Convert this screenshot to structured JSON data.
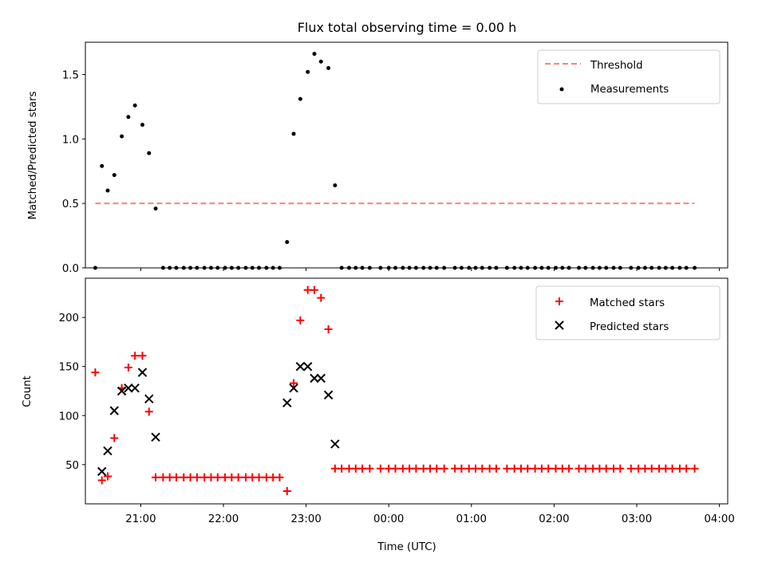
{
  "colors": {
    "threshold": "#ff7f7f",
    "measurement": "#000000",
    "matched": "#ff0000",
    "predicted": "#000000"
  },
  "chart_data": [
    {
      "type": "scatter",
      "title": "Flux total observing time = 0.00 h",
      "xlabel": "",
      "ylabel": "Matched/Predicted stars",
      "xlim": [
        20.33,
        28.1
      ],
      "ylim": [
        0,
        1.75
      ],
      "yticks": [
        0.0,
        0.5,
        1.0,
        1.5
      ],
      "ytick_labels": [
        "0.0",
        "0.5",
        "1.0",
        "1.5"
      ],
      "legend_position": "top-right",
      "series": [
        {
          "name": "Threshold",
          "style": "dashed-line",
          "x": [
            20.45,
            27.7
          ],
          "y": [
            0.5,
            0.5
          ]
        },
        {
          "name": "Measurements",
          "style": "dot",
          "x": [
            20.45,
            20.53,
            20.6,
            20.68,
            20.77,
            20.85,
            20.93,
            21.02,
            21.1,
            21.18,
            21.27,
            21.35,
            21.43,
            21.52,
            21.6,
            21.68,
            21.77,
            21.85,
            21.93,
            22.02,
            22.1,
            22.18,
            22.27,
            22.35,
            22.43,
            22.52,
            22.6,
            22.68,
            22.77,
            22.85,
            22.93,
            23.02,
            23.1,
            23.18,
            23.27,
            23.35,
            23.43,
            23.52,
            23.6,
            23.68,
            23.77,
            23.9,
            24.0,
            24.08,
            24.17,
            24.25,
            24.33,
            24.42,
            24.5,
            24.58,
            24.67,
            24.8,
            24.88,
            24.97,
            25.05,
            25.13,
            25.22,
            25.3,
            25.43,
            25.52,
            25.6,
            25.68,
            25.77,
            25.85,
            25.93,
            26.02,
            26.1,
            26.18,
            26.3,
            26.38,
            26.47,
            26.55,
            26.63,
            26.72,
            26.8,
            26.93,
            27.02,
            27.1,
            27.18,
            27.27,
            27.35,
            27.43,
            27.52,
            27.6,
            27.7
          ],
          "y": [
            0.0,
            0.79,
            0.6,
            0.72,
            1.02,
            1.17,
            1.26,
            1.11,
            0.89,
            0.46,
            0.0,
            0.0,
            0.0,
            0.0,
            0.0,
            0.0,
            0.0,
            0.0,
            0.0,
            0.0,
            0.0,
            0.0,
            0.0,
            0.0,
            0.0,
            0.0,
            0.0,
            0.0,
            0.2,
            1.04,
            1.31,
            1.52,
            1.66,
            1.6,
            1.55,
            0.64,
            0.0,
            0.0,
            0.0,
            0.0,
            0.0,
            0.0,
            0.0,
            0.0,
            0.0,
            0.0,
            0.0,
            0.0,
            0.0,
            0.0,
            0.0,
            0.0,
            0.0,
            0.0,
            0.0,
            0.0,
            0.0,
            0.0,
            0.0,
            0.0,
            0.0,
            0.0,
            0.0,
            0.0,
            0.0,
            0.0,
            0.0,
            0.0,
            0.0,
            0.0,
            0.0,
            0.0,
            0.0,
            0.0,
            0.0,
            0.0,
            0.0,
            0.0,
            0.0,
            0.0,
            0.0,
            0.0,
            0.0,
            0.0,
            0.0
          ]
        }
      ]
    },
    {
      "type": "scatter",
      "title": "",
      "xlabel": "Time (UTC)",
      "ylabel": "Count",
      "xlim": [
        20.33,
        28.1
      ],
      "ylim": [
        10,
        240
      ],
      "xticks": [
        21,
        22,
        23,
        24,
        25,
        26,
        27,
        28
      ],
      "xtick_labels": [
        "21:00",
        "22:00",
        "23:00",
        "00:00",
        "01:00",
        "02:00",
        "03:00",
        "04:00"
      ],
      "yticks": [
        50,
        100,
        150,
        200
      ],
      "ytick_labels": [
        "50",
        "100",
        "150",
        "200"
      ],
      "legend_position": "top-right",
      "series": [
        {
          "name": "Matched stars",
          "style": "plus",
          "x": [
            20.45,
            20.53,
            20.6,
            20.68,
            20.77,
            20.85,
            20.93,
            21.02,
            21.1,
            21.18,
            21.27,
            21.35,
            21.43,
            21.52,
            21.6,
            21.68,
            21.77,
            21.85,
            21.93,
            22.02,
            22.1,
            22.18,
            22.27,
            22.35,
            22.43,
            22.52,
            22.6,
            22.68,
            22.77,
            22.85,
            22.93,
            23.02,
            23.1,
            23.18,
            23.27,
            23.35,
            23.43,
            23.52,
            23.6,
            23.68,
            23.77,
            23.9,
            24.0,
            24.08,
            24.17,
            24.25,
            24.33,
            24.42,
            24.5,
            24.58,
            24.67,
            24.8,
            24.88,
            24.97,
            25.05,
            25.13,
            25.22,
            25.3,
            25.43,
            25.52,
            25.6,
            25.68,
            25.77,
            25.85,
            25.93,
            26.02,
            26.1,
            26.18,
            26.3,
            26.38,
            26.47,
            26.55,
            26.63,
            26.72,
            26.8,
            26.93,
            27.02,
            27.1,
            27.18,
            27.27,
            27.35,
            27.43,
            27.52,
            27.6,
            27.7
          ],
          "y": [
            144,
            34,
            38,
            77,
            128,
            149,
            161,
            161,
            104,
            37,
            37,
            37,
            37,
            37,
            37,
            37,
            37,
            37,
            37,
            37,
            37,
            37,
            37,
            37,
            37,
            37,
            37,
            37,
            23,
            133,
            197,
            228,
            228,
            220,
            188,
            46,
            46,
            46,
            46,
            46,
            46,
            46,
            46,
            46,
            46,
            46,
            46,
            46,
            46,
            46,
            46,
            46,
            46,
            46,
            46,
            46,
            46,
            46,
            46,
            46,
            46,
            46,
            46,
            46,
            46,
            46,
            46,
            46,
            46,
            46,
            46,
            46,
            46,
            46,
            46,
            46,
            46,
            46,
            46,
            46,
            46,
            46,
            46,
            46,
            46
          ]
        },
        {
          "name": "Predicted stars",
          "style": "x",
          "x": [
            20.53,
            20.6,
            20.68,
            20.77,
            20.85,
            20.93,
            21.02,
            21.1,
            21.18,
            22.77,
            22.85,
            22.93,
            23.02,
            23.1,
            23.18,
            23.27,
            23.35
          ],
          "y": [
            43,
            64,
            105,
            125,
            128,
            128,
            144,
            117,
            78,
            113,
            128,
            150,
            150,
            138,
            138,
            121,
            71
          ]
        }
      ]
    }
  ]
}
